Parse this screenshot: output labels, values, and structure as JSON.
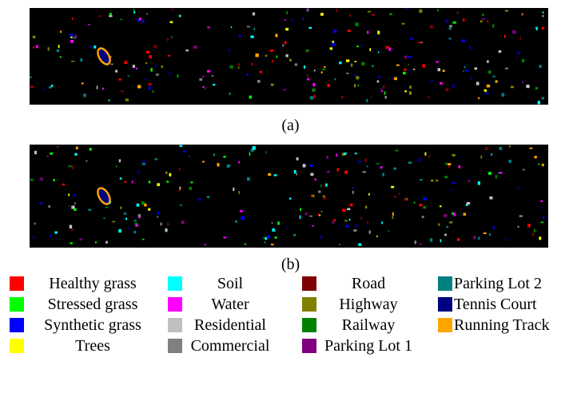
{
  "captions": [
    "(a)",
    "(b)"
  ],
  "legend": [
    {
      "label": "Healthy grass",
      "color": "#ff0000"
    },
    {
      "label": "Stressed grass",
      "color": "#00ff00"
    },
    {
      "label": "Synthetic grass",
      "color": "#0000ff"
    },
    {
      "label": "Trees",
      "color": "#ffff00"
    },
    {
      "label": "Soil",
      "color": "#00ffff"
    },
    {
      "label": "Water",
      "color": "#ff00ff"
    },
    {
      "label": "Residential",
      "color": "#c0c0c0"
    },
    {
      "label": "Commercial",
      "color": "#808080"
    },
    {
      "label": "Road",
      "color": "#800000"
    },
    {
      "label": "Highway",
      "color": "#808000"
    },
    {
      "label": "Railway",
      "color": "#008000"
    },
    {
      "label": "Parking Lot 1",
      "color": "#800080"
    },
    {
      "label": "Parking Lot 2",
      "color": "#008080"
    },
    {
      "label": "Tennis Court",
      "color": "#000080"
    },
    {
      "label": "Running Track",
      "color": "#ffa500"
    }
  ]
}
